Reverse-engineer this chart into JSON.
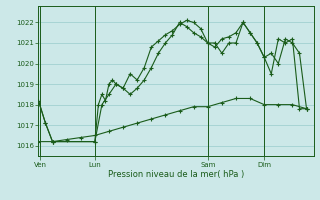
{
  "xlabel": "Pression niveau de la mer( hPa )",
  "bg_color": "#cce8e8",
  "grid_color": "#99cccc",
  "line_color": "#1a5c1a",
  "ylim": [
    1015.5,
    1022.8
  ],
  "yticks": [
    1016,
    1017,
    1018,
    1019,
    1020,
    1021,
    1022
  ],
  "day_labels": [
    "Ven",
    "Lun",
    "Sam",
    "Dim"
  ],
  "day_positions": [
    0.5,
    16,
    48,
    64
  ],
  "xlim": [
    0,
    78
  ],
  "line1_x": [
    0,
    2,
    4,
    16,
    17,
    18,
    19,
    20,
    21,
    22,
    24,
    26,
    28,
    30,
    32,
    34,
    36,
    38,
    40,
    42,
    44,
    46,
    48,
    50,
    52,
    54,
    56,
    58,
    60,
    62,
    64,
    66,
    68,
    70,
    72,
    74,
    76
  ],
  "line1_y": [
    1018.2,
    1017.1,
    1016.2,
    1016.2,
    1018.0,
    1018.5,
    1018.2,
    1019.0,
    1019.2,
    1019.0,
    1018.8,
    1019.5,
    1019.2,
    1019.8,
    1020.8,
    1021.1,
    1021.4,
    1021.6,
    1021.9,
    1022.1,
    1022.0,
    1021.7,
    1021.0,
    1021.0,
    1020.5,
    1021.0,
    1021.0,
    1022.0,
    1021.5,
    1021.0,
    1020.3,
    1020.5,
    1020.0,
    1021.2,
    1021.0,
    1020.5,
    1017.8
  ],
  "line2_x": [
    0,
    2,
    4,
    16,
    18,
    20,
    22,
    24,
    26,
    28,
    30,
    32,
    34,
    36,
    38,
    40,
    42,
    44,
    46,
    48,
    50,
    52,
    54,
    56,
    58,
    60,
    62,
    64,
    66,
    68,
    70,
    72,
    74,
    76
  ],
  "line2_y": [
    1018.2,
    1017.1,
    1016.2,
    1016.2,
    1018.0,
    1018.5,
    1019.0,
    1018.8,
    1018.5,
    1018.8,
    1019.2,
    1019.8,
    1020.5,
    1021.0,
    1021.4,
    1022.0,
    1021.8,
    1021.5,
    1021.3,
    1021.0,
    1020.8,
    1021.2,
    1021.3,
    1021.5,
    1022.0,
    1021.5,
    1021.0,
    1020.3,
    1019.5,
    1021.2,
    1021.0,
    1021.2,
    1017.8,
    1017.8
  ],
  "line3_x": [
    0,
    4,
    8,
    12,
    16,
    20,
    24,
    28,
    32,
    36,
    40,
    44,
    48,
    52,
    56,
    60,
    64,
    68,
    72,
    76
  ],
  "line3_y": [
    1016.2,
    1016.2,
    1016.3,
    1016.4,
    1016.5,
    1016.7,
    1016.9,
    1017.1,
    1017.3,
    1017.5,
    1017.7,
    1017.9,
    1017.9,
    1018.1,
    1018.3,
    1018.3,
    1018.0,
    1018.0,
    1018.0,
    1017.8
  ]
}
